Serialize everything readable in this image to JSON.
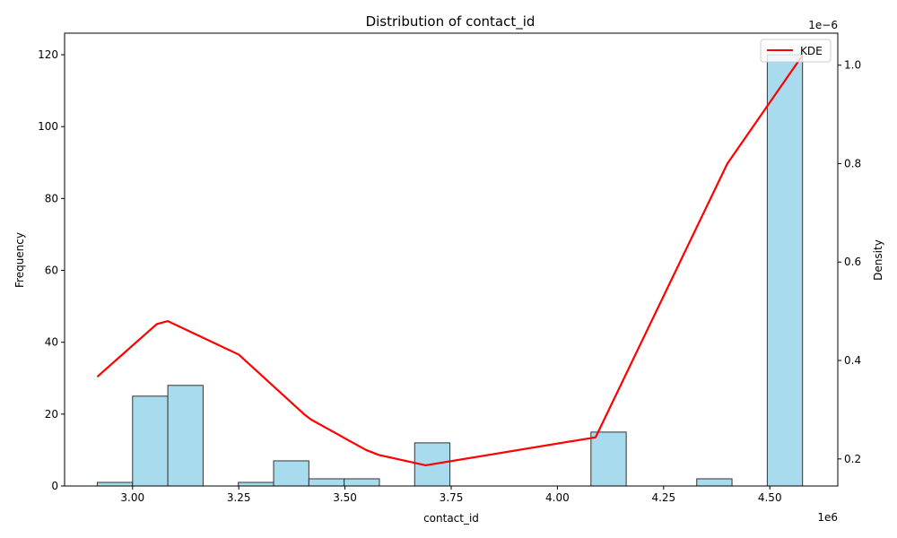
{
  "chart_data": {
    "type": "bar",
    "title": "Distribution of contact_id",
    "xlabel": "contact_id",
    "ylabel": "Frequency",
    "ylabel_right": "Density",
    "x_offset_label": "1e6",
    "y2_offset_label": "1e−6",
    "xlim": [
      2.84,
      4.66
    ],
    "ylim": [
      0,
      126
    ],
    "y2lim": [
      0.145,
      1.065
    ],
    "x_ticks": [
      {
        "value": 3.0,
        "label": "3.00"
      },
      {
        "value": 3.25,
        "label": "3.25"
      },
      {
        "value": 3.5,
        "label": "3.50"
      },
      {
        "value": 3.75,
        "label": "3.75"
      },
      {
        "value": 4.0,
        "label": "4.00"
      },
      {
        "value": 4.25,
        "label": "4.25"
      },
      {
        "value": 4.5,
        "label": "4.50"
      }
    ],
    "y_ticks": [
      {
        "value": 0,
        "label": "0"
      },
      {
        "value": 20,
        "label": "20"
      },
      {
        "value": 40,
        "label": "40"
      },
      {
        "value": 60,
        "label": "60"
      },
      {
        "value": 80,
        "label": "80"
      },
      {
        "value": 100,
        "label": "100"
      },
      {
        "value": 120,
        "label": "120"
      }
    ],
    "y2_ticks": [
      {
        "value": 0.2,
        "label": "0.2"
      },
      {
        "value": 0.4,
        "label": "0.4"
      },
      {
        "value": 0.6,
        "label": "0.6"
      },
      {
        "value": 0.8,
        "label": "0.8"
      },
      {
        "value": 1.0,
        "label": "1.0"
      }
    ],
    "bins": [
      {
        "x0": 2.917,
        "x1": 3.0,
        "count": 1
      },
      {
        "x0": 3.0,
        "x1": 3.083,
        "count": 25
      },
      {
        "x0": 3.083,
        "x1": 3.166,
        "count": 28
      },
      {
        "x0": 3.166,
        "x1": 3.249,
        "count": 0
      },
      {
        "x0": 3.249,
        "x1": 3.332,
        "count": 1
      },
      {
        "x0": 3.332,
        "x1": 3.415,
        "count": 7
      },
      {
        "x0": 3.415,
        "x1": 3.498,
        "count": 2
      },
      {
        "x0": 3.498,
        "x1": 3.581,
        "count": 2
      },
      {
        "x0": 3.581,
        "x1": 3.664,
        "count": 0
      },
      {
        "x0": 3.664,
        "x1": 3.747,
        "count": 12
      },
      {
        "x0": 3.747,
        "x1": 3.83,
        "count": 0
      },
      {
        "x0": 3.83,
        "x1": 3.913,
        "count": 0
      },
      {
        "x0": 3.913,
        "x1": 3.996,
        "count": 0
      },
      {
        "x0": 3.996,
        "x1": 4.079,
        "count": 0
      },
      {
        "x0": 4.079,
        "x1": 4.162,
        "count": 15
      },
      {
        "x0": 4.162,
        "x1": 4.245,
        "count": 0
      },
      {
        "x0": 4.245,
        "x1": 4.328,
        "count": 0
      },
      {
        "x0": 4.328,
        "x1": 4.411,
        "count": 2
      },
      {
        "x0": 4.411,
        "x1": 4.494,
        "count": 0
      },
      {
        "x0": 4.494,
        "x1": 4.577,
        "count": 120
      }
    ],
    "series": [
      {
        "name": "KDE",
        "color": "#ff0000",
        "x": [
          2.917,
          3.057,
          3.083,
          3.25,
          3.405,
          3.42,
          3.55,
          3.58,
          3.69,
          4.09,
          4.4,
          4.577
        ],
        "y": [
          0.367,
          0.474,
          0.48,
          0.412,
          0.29,
          0.28,
          0.218,
          0.208,
          0.187,
          0.244,
          0.8,
          1.02
        ]
      }
    ],
    "bar_color": "#a8dbed",
    "legend_position": "top-right",
    "grid": false
  }
}
